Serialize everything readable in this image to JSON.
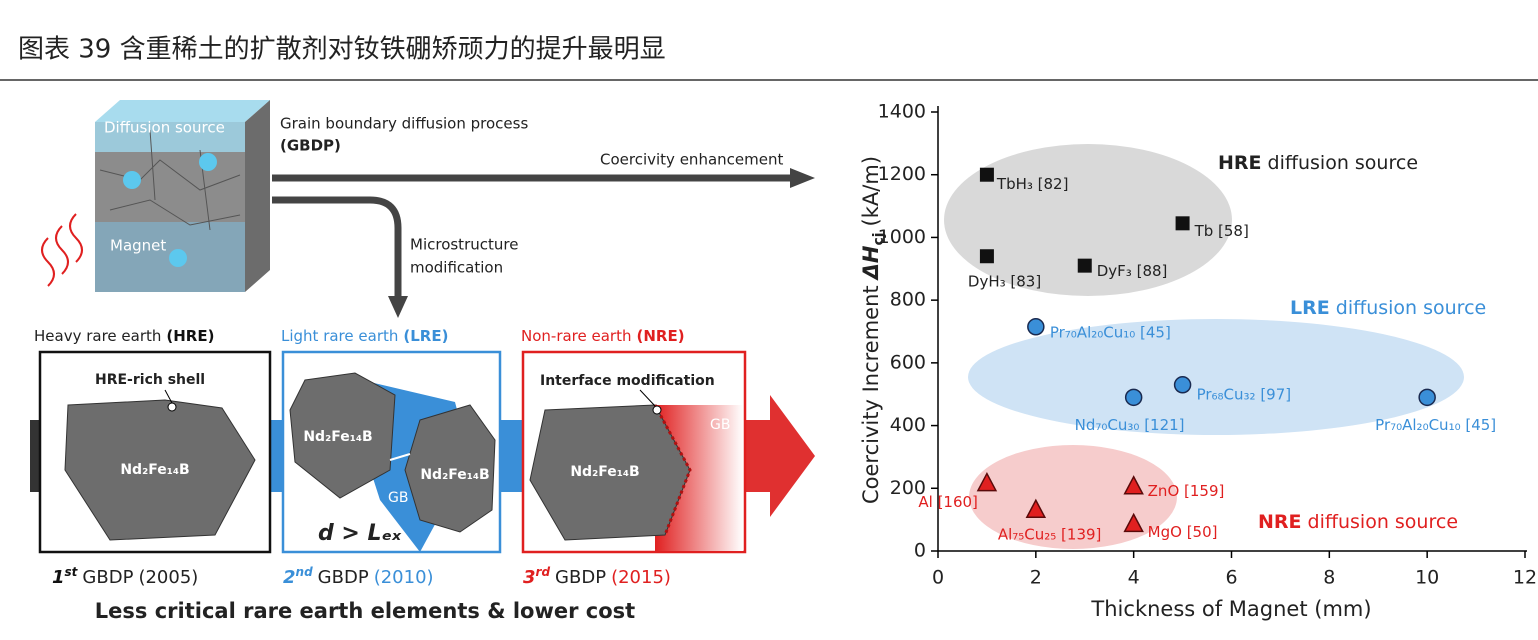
{
  "header": {
    "title": "图表 39 含重稀土的扩散剂对钕铁硼矫顽力的提升最明显"
  },
  "diagram": {
    "cube": {
      "top": "Diffusion source",
      "bottom": "Magnet"
    },
    "process": {
      "line1": "Grain boundary diffusion process",
      "line2": "(GBDP)"
    },
    "arrow_right": "Coercivity enhancement",
    "arrow_down": {
      "line1": "Microstructure",
      "line2": "modification"
    },
    "panels": [
      {
        "heading": "Heavy rare earth",
        "abbr": "(HRE)",
        "callout": "HRE-rich shell",
        "grain": "Nd₂Fe₁₄B",
        "ordinal": "1",
        "suffix": "st",
        "gbdp": "GBDP",
        "year": "(2005)"
      },
      {
        "heading": "Light rare earth",
        "abbr": "(LRE)",
        "grain": "Nd₂Fe₁₄B",
        "grain2": "Nd₂Fe₁₄B",
        "gb": "GB",
        "relation": "d > Lₑₓ",
        "ordinal": "2",
        "suffix": "nd",
        "gbdp": "GBDP",
        "year": "(2010)"
      },
      {
        "heading": "Non-rare earth",
        "abbr": "(NRE)",
        "callout": "Interface modification",
        "grain": "Nd₂Fe₁₄B",
        "gb": "GB",
        "ordinal": "3",
        "suffix": "rd",
        "gbdp": "GBDP",
        "year": "(2015)"
      }
    ],
    "footer": "Less critical rare earth elements & lower cost"
  },
  "chart_data": {
    "type": "scatter",
    "xlabel": "Thickness of Magnet (mm)",
    "ylabel": {
      "text": "Coercivity Increment",
      "symbol": "ΔH",
      "subscript": "cj",
      "unit": "(kA/m)"
    },
    "xlim": [
      0,
      12
    ],
    "xticks": [
      0,
      2,
      4,
      6,
      8,
      10,
      12
    ],
    "ylim": [
      0,
      1400
    ],
    "yticks": [
      0,
      200,
      400,
      600,
      800,
      1000,
      1200,
      1400
    ],
    "series": [
      {
        "name": "HRE diffusion source",
        "color": "#111111",
        "marker": "square",
        "x": [
          1,
          1,
          3,
          5
        ],
        "values": [
          1200,
          940,
          910,
          1045
        ],
        "point_labels": [
          "TbH₃ [82]",
          "DyH₃ [83]",
          "DyF₃ [88]",
          "Tb [58]"
        ]
      },
      {
        "name": "LRE diffusion source",
        "color": "#3a8fd8",
        "marker": "circle",
        "x": [
          2,
          4,
          5,
          10
        ],
        "values": [
          715,
          490,
          530,
          490
        ],
        "point_labels": [
          "Pr₇₀Al₂₀Cu₁₀ [45]",
          "Nd₇₀Cu₃₀ [121]",
          "Pr₆₈Cu₃₂ [97]",
          "Pr₇₀Al₂₀Cu₁₀ [45]"
        ]
      },
      {
        "name": "NRE diffusion source",
        "color": "#e02020",
        "marker": "triangle",
        "x": [
          1,
          2,
          4,
          4
        ],
        "values": [
          215,
          130,
          205,
          85
        ],
        "point_labels": [
          "Al [160]",
          "Al₇₅Cu₂₅ [139]",
          "ZnO [159]",
          "MgO [50]"
        ]
      }
    ]
  }
}
